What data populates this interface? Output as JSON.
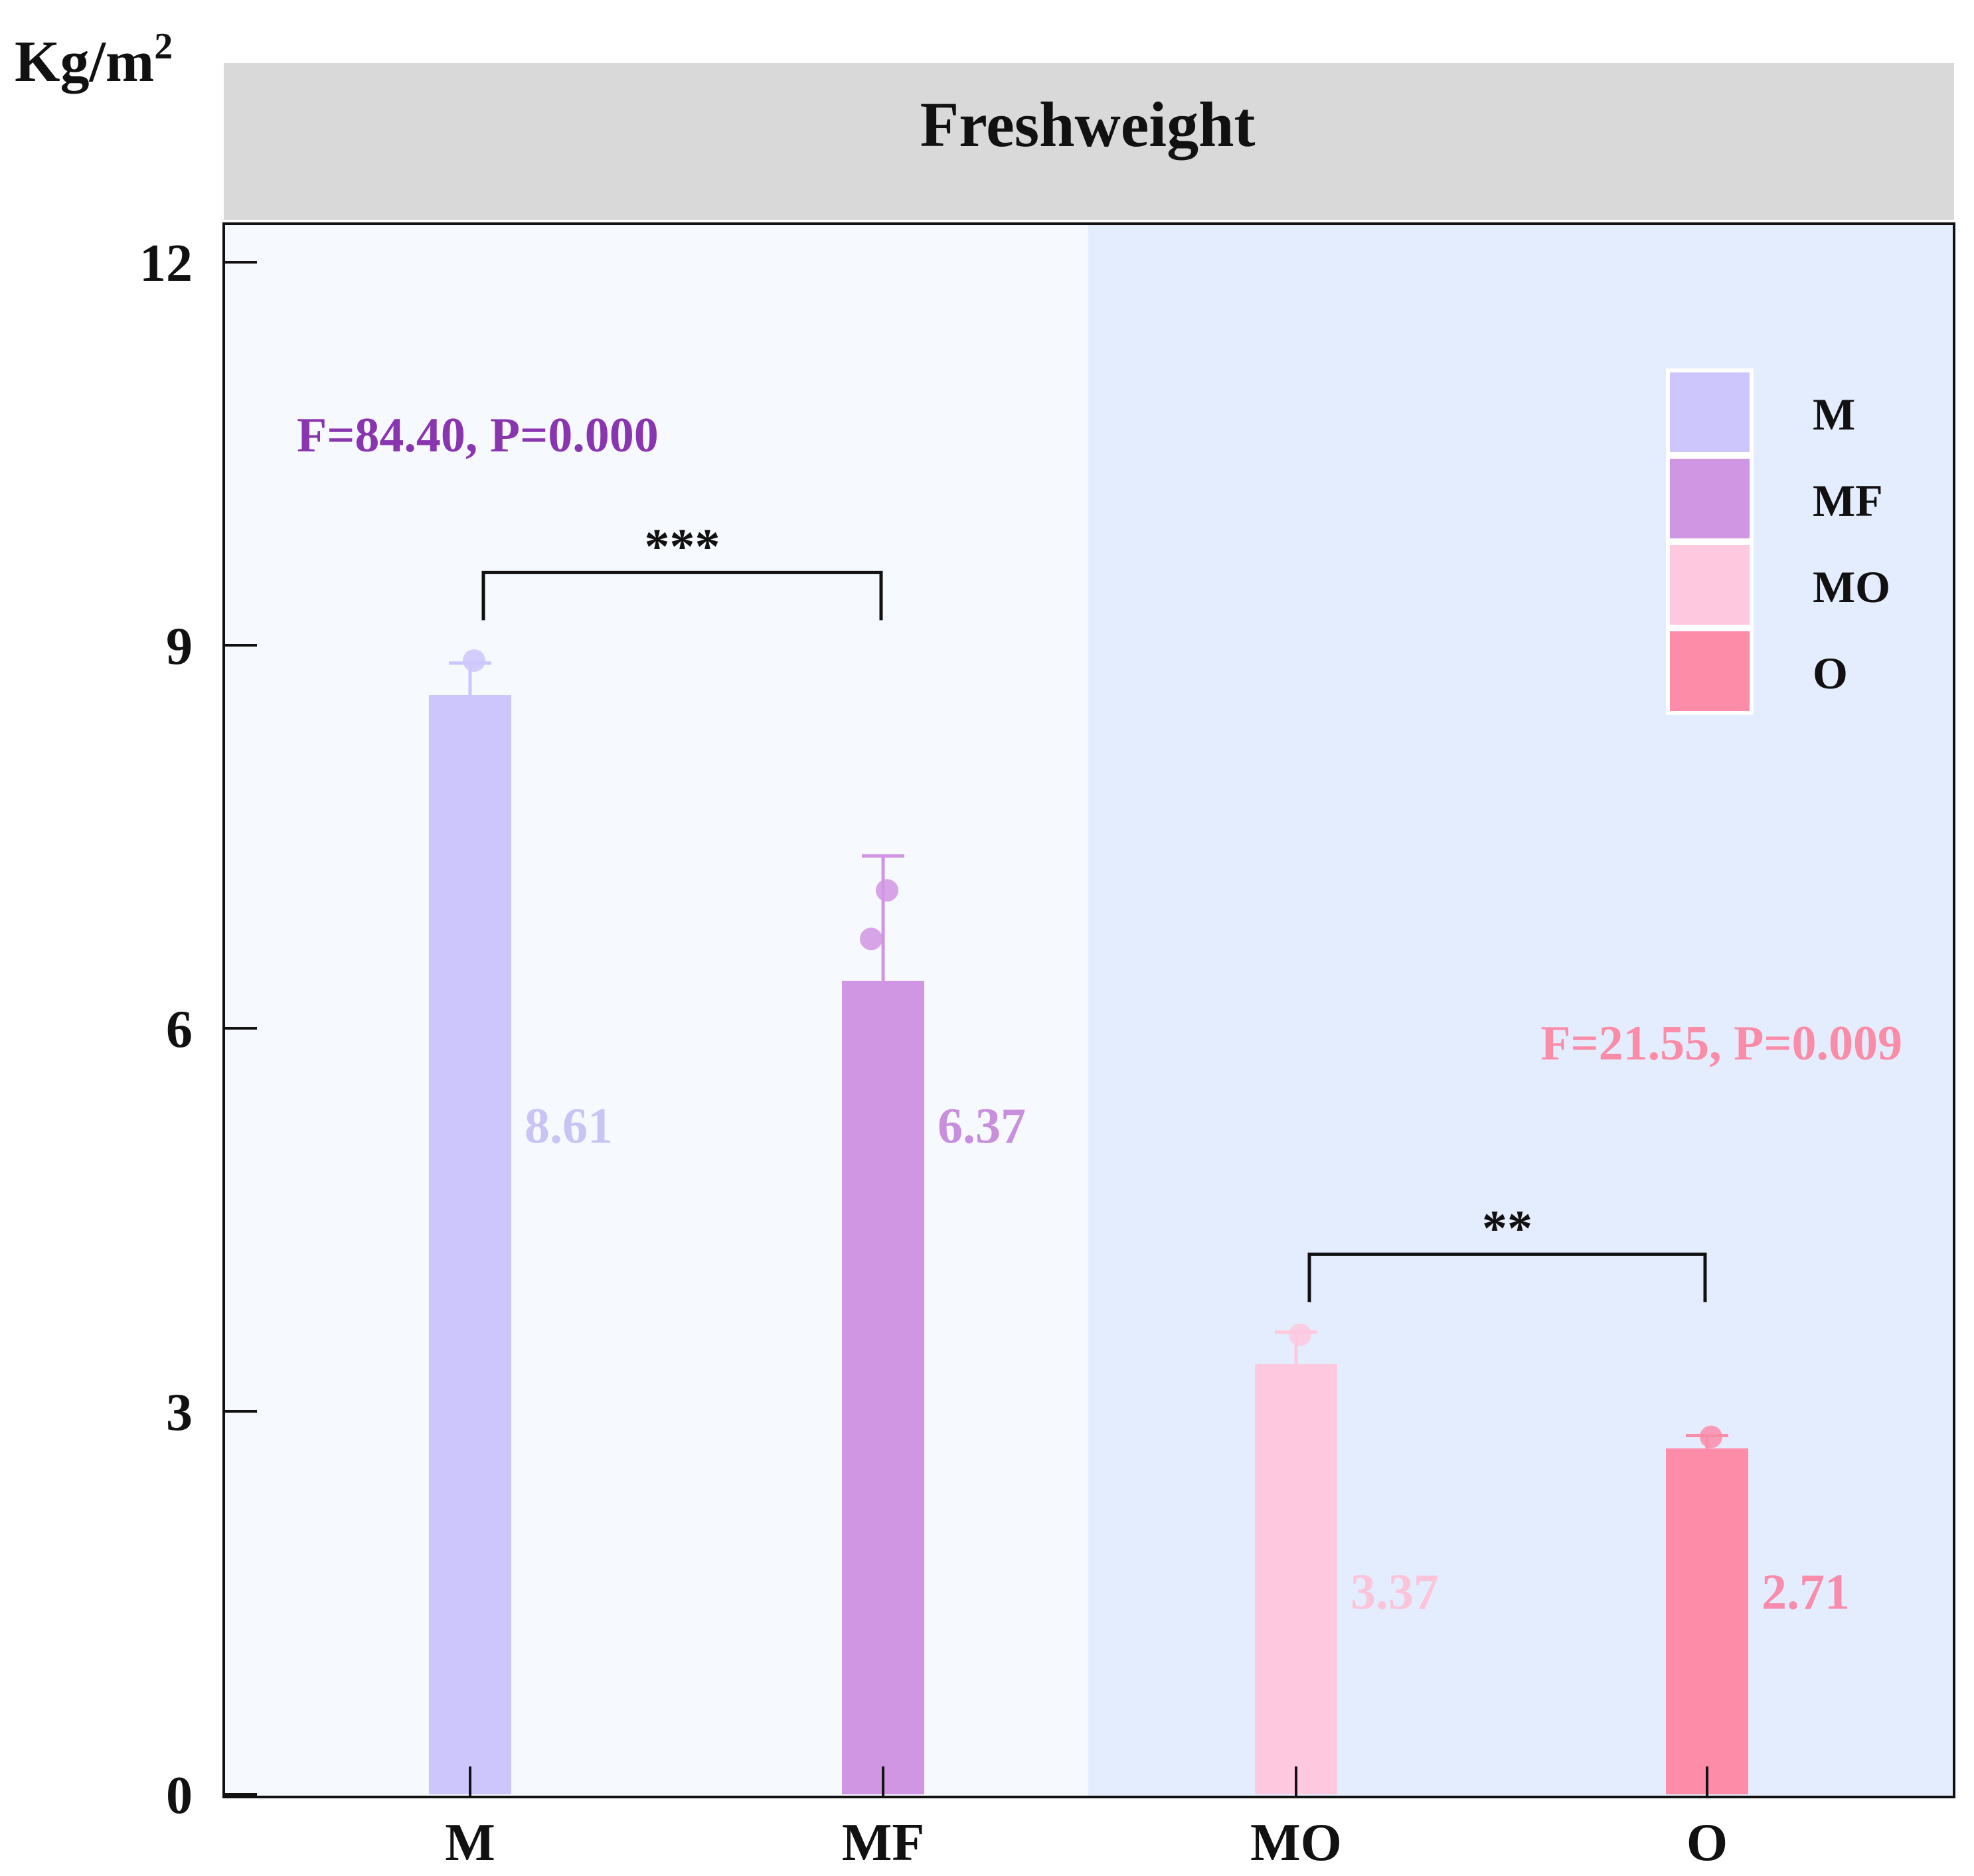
{
  "chart_data": {
    "type": "bar",
    "title": "Freshweight",
    "ylabel": "Kg/m",
    "ylabel_sup": "2",
    "xlabel": "",
    "ylim": [
      0,
      12
    ],
    "yticks": [
      {
        "value": 0,
        "label": "0"
      },
      {
        "value": 3,
        "label": "3"
      },
      {
        "value": 6,
        "label": "6"
      },
      {
        "value": 9,
        "label": "9"
      },
      {
        "value": 12,
        "label": "12"
      }
    ],
    "categories": [
      "M",
      "MF",
      "MO",
      "O"
    ],
    "values": [
      8.61,
      6.37,
      3.37,
      2.71
    ],
    "value_labels": [
      "8.61",
      "6.37",
      "3.37",
      "2.71"
    ],
    "error_upper": [
      8.86,
      7.35,
      3.62,
      2.81
    ],
    "points": [
      [
        8.88
      ],
      [
        7.08,
        6.7
      ],
      [
        3.6
      ],
      [
        2.8
      ]
    ],
    "colors": [
      "#ccc6fd",
      "#d196e3",
      "#fec8de",
      "#fd8ca9"
    ],
    "value_label_colors": [
      "#c9c4f5",
      "#c88fdc",
      "#fbc4d9",
      "#f98cab"
    ],
    "legend": {
      "position": "top-right",
      "entries": [
        "M",
        "MF",
        "MO",
        "O"
      ]
    },
    "groups": [
      {
        "members": [
          "M",
          "MF"
        ],
        "background": "#f6f9fd",
        "stat_text": "F=84.40, P=0.000",
        "stat_color": "#8a35b0",
        "significance": "***",
        "bracket_y": 9.57
      },
      {
        "members": [
          "MO",
          "O"
        ],
        "background": "#e4edfd",
        "stat_text": "F=21.55, P=0.009",
        "stat_color": "#fb8ca8",
        "significance": "**",
        "bracket_y": 4.23
      }
    ],
    "grid": false
  }
}
